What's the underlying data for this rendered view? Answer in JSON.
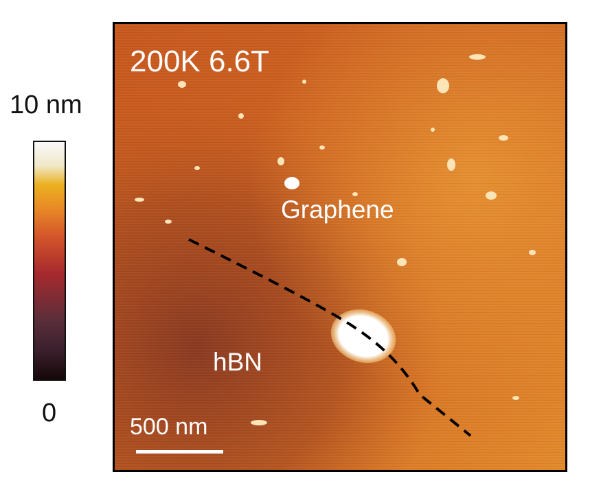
{
  "colorbar": {
    "max_label": "10 nm",
    "min_label": "0",
    "stops": [
      "#1a0a0e",
      "#4a2a3a",
      "#b8262c",
      "#e06a30",
      "#e8a81a",
      "#f5f0e0",
      "#f8f8f8"
    ]
  },
  "afm": {
    "condition_label": "200K 6.6T",
    "region_labels": {
      "graphene": "Graphene",
      "hbn": "hBN"
    },
    "scale_bar_label": "500 nm",
    "boundary_line": "dashed, black"
  },
  "colors": {
    "substrate_hbn": "#b5501e",
    "graphene": "#e07d28",
    "highlight": "#ffffff",
    "boundary": "#000000"
  }
}
